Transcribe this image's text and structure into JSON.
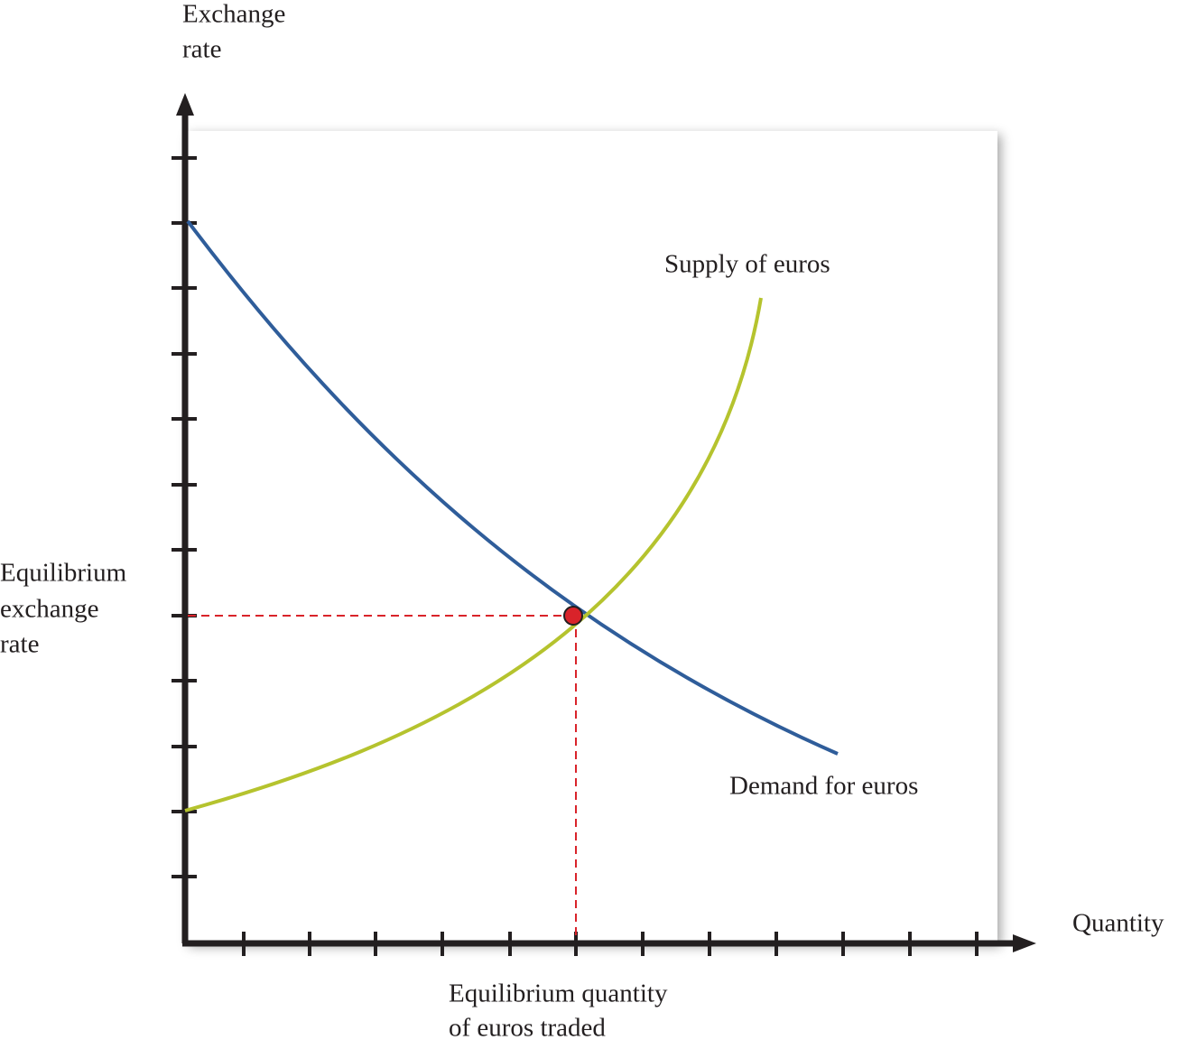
{
  "axes": {
    "y_label": [
      "Exchange",
      "rate"
    ],
    "x_label": "Quantity"
  },
  "curves": {
    "supply": "Supply of euros",
    "demand": "Demand for euros"
  },
  "equilibrium": {
    "rate_label": [
      "Equilibrium",
      "exchange",
      "rate"
    ],
    "quantity_label": [
      "Equilibrium quantity",
      "of euros traded"
    ]
  }
}
